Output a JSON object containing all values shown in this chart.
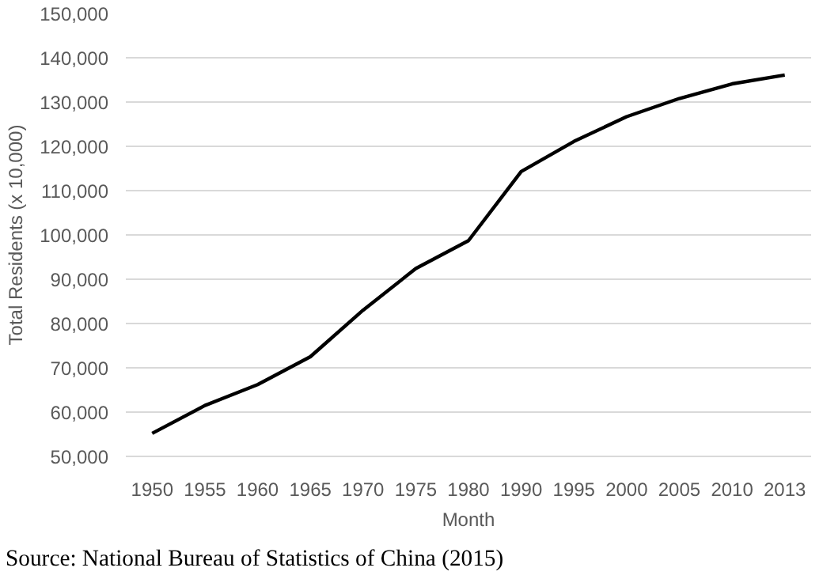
{
  "chart_data": {
    "type": "line",
    "categories": [
      "1950",
      "1955",
      "1960",
      "1965",
      "1970",
      "1975",
      "1980",
      "1990",
      "1995",
      "2000",
      "2005",
      "2010",
      "2013"
    ],
    "series": [
      {
        "color": "#000000",
        "values": [
          55200,
          61500,
          66200,
          72500,
          83000,
          92400,
          98700,
          114300,
          121100,
          126700,
          130800,
          134100,
          136100
        ]
      }
    ],
    "xlabel": "Month",
    "ylabel": "Total Residents (x 10,000)",
    "ylim": [
      50000,
      150000
    ],
    "yticks": [
      {
        "value": 50000,
        "label": "50,000"
      },
      {
        "value": 60000,
        "label": "60,000"
      },
      {
        "value": 70000,
        "label": "70,000"
      },
      {
        "value": 80000,
        "label": "80,000"
      },
      {
        "value": 90000,
        "label": "90,000"
      },
      {
        "value": 100000,
        "label": "100,000"
      },
      {
        "value": 110000,
        "label": "110,000"
      },
      {
        "value": 120000,
        "label": "120,000"
      },
      {
        "value": 130000,
        "label": "130,000"
      },
      {
        "value": 140000,
        "label": "140,000"
      },
      {
        "value": 150000,
        "label": "150,000"
      }
    ],
    "grid": "y",
    "marker": "none",
    "line_style": "solid",
    "annotations": [
      "Source: National Bureau of Statistics of China (2015)"
    ]
  }
}
